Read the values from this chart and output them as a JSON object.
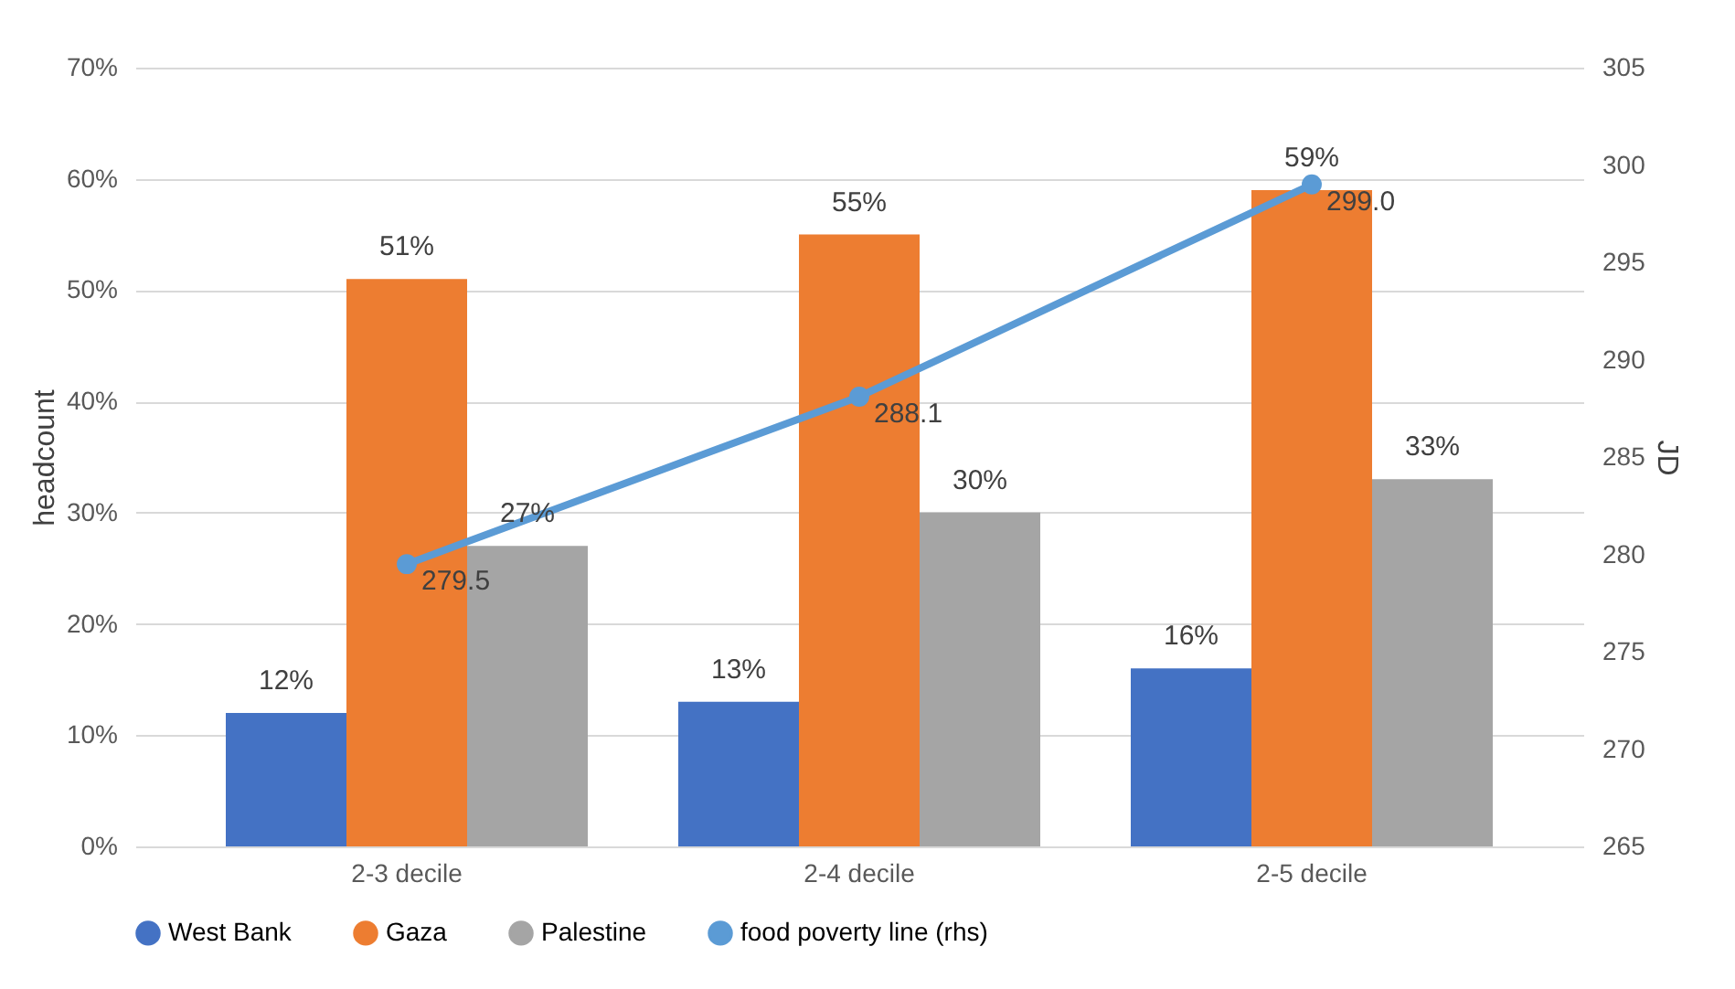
{
  "chart_data": {
    "type": "bar",
    "categories": [
      "2-3 decile",
      "2-4 decile",
      "2-5 decile"
    ],
    "ylabel": "headcount",
    "y2label": "JD",
    "ylim": [
      0,
      70
    ],
    "yticks": [
      {
        "value": 0,
        "label": "0%"
      },
      {
        "value": 10,
        "label": "10%"
      },
      {
        "value": 20,
        "label": "20%"
      },
      {
        "value": 30,
        "label": "30%"
      },
      {
        "value": 40,
        "label": "40%"
      },
      {
        "value": 50,
        "label": "50%"
      },
      {
        "value": 60,
        "label": "60%"
      },
      {
        "value": 70,
        "label": "70%"
      }
    ],
    "y2lim": [
      265,
      305
    ],
    "y2ticks": [
      265,
      270,
      275,
      280,
      285,
      290,
      295,
      300,
      305
    ],
    "grid": "y",
    "legend": "bottom",
    "series": [
      {
        "name": "West Bank",
        "color": "#4472c4",
        "values": [
          12,
          13,
          16
        ],
        "value_labels": [
          "12%",
          "13%",
          "16%"
        ]
      },
      {
        "name": "Gaza",
        "color": "#ed7d31",
        "values": [
          51,
          55,
          59
        ],
        "value_labels": [
          "51%",
          "55%",
          "59%"
        ]
      },
      {
        "name": "Palestine",
        "color": "#a5a5a5",
        "values": [
          27,
          30,
          33
        ],
        "value_labels": [
          "27%",
          "30%",
          "33%"
        ]
      },
      {
        "name": "food poverty line (rhs)",
        "type": "line",
        "axis": "y2",
        "marker": "circle",
        "color": "#5b9bd5",
        "values": [
          279.5,
          288.1,
          299.0
        ],
        "value_labels": [
          "279.5",
          "288.1",
          "299.0"
        ]
      }
    ]
  }
}
